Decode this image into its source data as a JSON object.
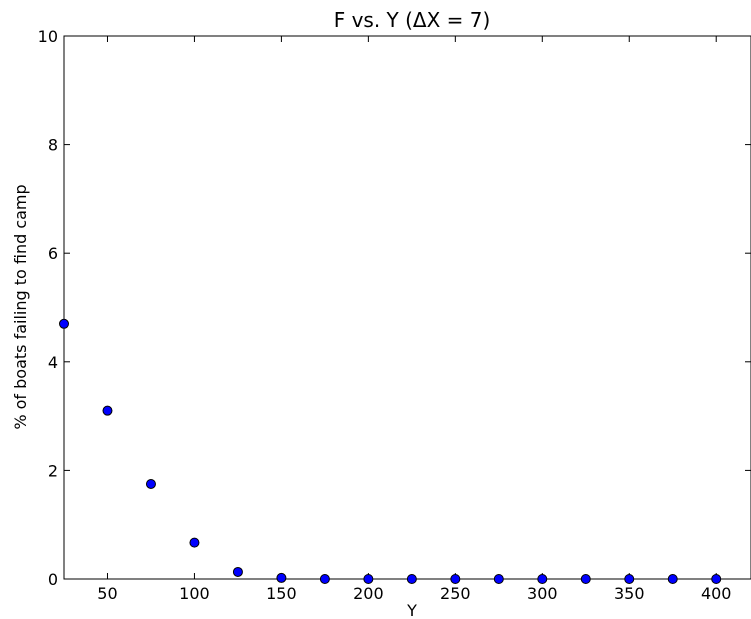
{
  "chart_data": {
    "type": "scatter",
    "title": "F vs. Y (ΔX = 7)",
    "xlabel": "Y",
    "ylabel": "% of boats failing to find camp",
    "xlim": [
      25,
      420
    ],
    "ylim": [
      0,
      10
    ],
    "xticks": [
      50,
      100,
      150,
      200,
      250,
      300,
      350,
      400
    ],
    "xtick_labels": [
      "50",
      "100",
      "150",
      "200",
      "250",
      "300",
      "350",
      "400"
    ],
    "yticks": [
      0,
      2,
      4,
      6,
      8,
      10
    ],
    "ytick_labels": [
      "0",
      "2",
      "4",
      "6",
      "8",
      "10"
    ],
    "grid": false,
    "series": [
      {
        "color": "#0000ff",
        "x": [
          25,
          50,
          75,
          100,
          125,
          150,
          175,
          200,
          225,
          250,
          275,
          300,
          325,
          350,
          375,
          400
        ],
        "y": [
          4.7,
          3.1,
          1.75,
          0.67,
          0.13,
          0.02,
          0.0,
          0.0,
          0.0,
          0.0,
          0.0,
          0.0,
          0.0,
          0.0,
          0.0,
          0.0
        ]
      }
    ]
  }
}
